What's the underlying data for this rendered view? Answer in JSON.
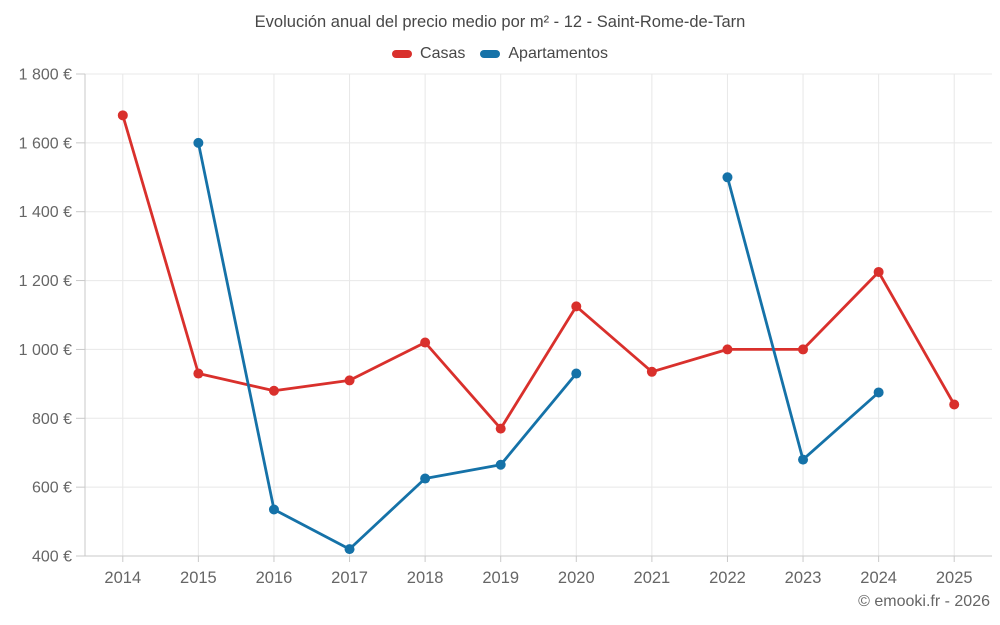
{
  "footer": "© emooki.fr - 2026",
  "chart_data": {
    "type": "line",
    "title": "Evolución anual del precio medio por m² - 12 - Saint-Rome-de-Tarn",
    "x": [
      2014,
      2015,
      2016,
      2017,
      2018,
      2019,
      2020,
      2021,
      2022,
      2023,
      2024,
      2025
    ],
    "series": [
      {
        "name": "Casas",
        "color": "#d9302c",
        "values": [
          1680,
          930,
          880,
          910,
          1020,
          770,
          1125,
          935,
          1000,
          1000,
          1225,
          840
        ]
      },
      {
        "name": "Apartamentos",
        "color": "#1572a8",
        "values": [
          null,
          1600,
          535,
          420,
          625,
          665,
          930,
          null,
          1500,
          680,
          875,
          null
        ]
      }
    ],
    "ylim": [
      400,
      1800
    ],
    "ytick_step": 200,
    "ytick_labels": [
      "400 €",
      "600 €",
      "800 €",
      "1 000 €",
      "1 200 €",
      "1 400 €",
      "1 600 €",
      "1 800 €"
    ],
    "currency_suffix": "€",
    "grid": true,
    "legend_position": "top",
    "marker": "circle",
    "gaps_note": "Apartamentos has no data for 2014, 2021 and 2025"
  },
  "style_colors": {
    "background": "#ffffff",
    "gridline": "#e8e8e8",
    "axis": "#c9c9c9",
    "tick_label": "#666666",
    "title_text": "#474747"
  }
}
